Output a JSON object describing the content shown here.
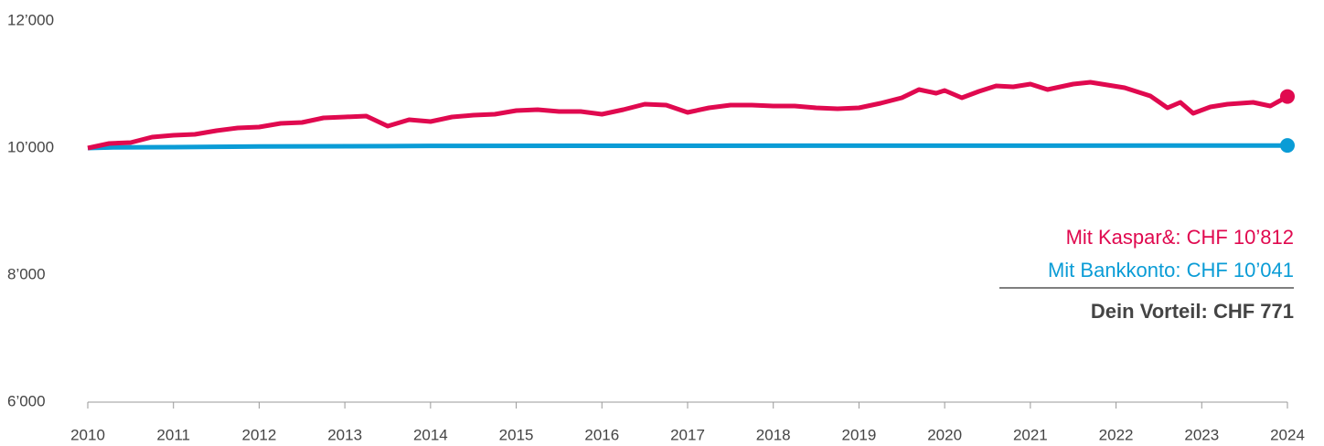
{
  "chart_data": {
    "type": "line",
    "series": [
      {
        "name": "Mit Kaspar&",
        "color": "#e0094f",
        "x": [
          2010,
          2010.25,
          2010.5,
          2010.75,
          2011,
          2011.25,
          2011.5,
          2011.75,
          2012,
          2012.25,
          2012.5,
          2012.75,
          2013,
          2013.25,
          2013.5,
          2013.75,
          2014,
          2014.25,
          2014.5,
          2014.75,
          2015,
          2015.25,
          2015.5,
          2015.75,
          2016,
          2016.25,
          2016.5,
          2016.75,
          2017,
          2017.25,
          2017.5,
          2017.75,
          2018,
          2018.25,
          2018.5,
          2018.75,
          2019,
          2019.25,
          2019.5,
          2019.7,
          2019.9,
          2020,
          2020.2,
          2020.4,
          2020.6,
          2020.8,
          2021,
          2021.2,
          2021.5,
          2021.7,
          2021.9,
          2022.1,
          2022.4,
          2022.6,
          2022.75,
          2022.9,
          2023.1,
          2023.3,
          2023.6,
          2023.8,
          2024
        ],
        "values": [
          10000,
          10072,
          10086,
          10173,
          10201,
          10216,
          10273,
          10317,
          10331,
          10388,
          10403,
          10475,
          10489,
          10504,
          10345,
          10446,
          10417,
          10489,
          10518,
          10532,
          10590,
          10604,
          10576,
          10576,
          10532,
          10604,
          10691,
          10676,
          10561,
          10633,
          10676,
          10676,
          10662,
          10662,
          10633,
          10619,
          10633,
          10705,
          10791,
          10921,
          10863,
          10907,
          10791,
          10892,
          10978,
          10964,
          11007,
          10921,
          11007,
          11036,
          10993,
          10950,
          10820,
          10633,
          10719,
          10547,
          10647,
          10691,
          10719,
          10662,
          10812
        ]
      },
      {
        "name": "Mit Bankkonto",
        "color": "#0a9cd6",
        "x": [
          2010,
          2010.3,
          2011,
          2011.5,
          2012,
          2013.5,
          2014,
          2024
        ],
        "values": [
          10000,
          10010,
          10015,
          10020,
          10025,
          10030,
          10035,
          10041
        ]
      }
    ],
    "xlim": [
      2010,
      2024
    ],
    "xticks": [
      2010,
      2011,
      2012,
      2013,
      2014,
      2015,
      2016,
      2017,
      2018,
      2019,
      2020,
      2021,
      2022,
      2023,
      2024
    ],
    "ylim": [
      6000,
      12000
    ],
    "yticks": [
      {
        "value": 6000,
        "label": "6’000"
      },
      {
        "value": 8000,
        "label": "8’000"
      },
      {
        "value": 10000,
        "label": "10’000"
      },
      {
        "value": 12000,
        "label": "12’000"
      }
    ],
    "annotations": [
      "Mit Kaspar&: CHF 10’812",
      "Mit Bankkonto: CHF 10’041",
      "Dein Vorteil: CHF 771"
    ]
  }
}
